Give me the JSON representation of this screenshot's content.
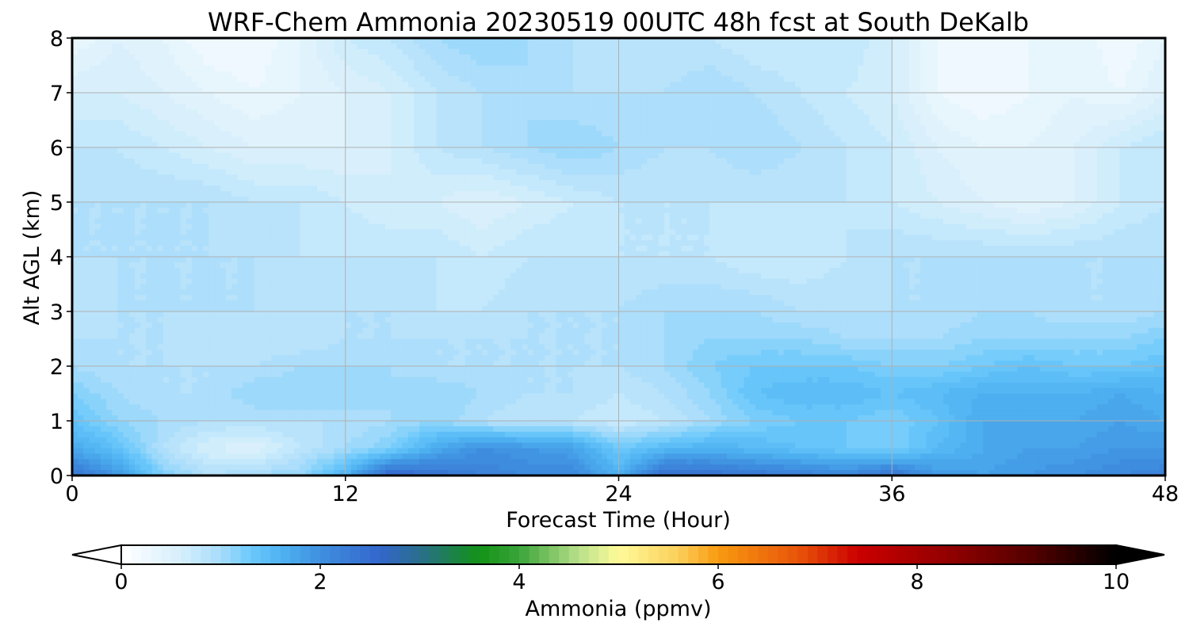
{
  "chart_data": {
    "type": "heatmap",
    "title": "WRF-Chem Ammonia  20230519 00UTC 48h fcst at South DeKalb",
    "xlabel": "Forecast Time (Hour)",
    "ylabel": "Alt AGL (km)",
    "xlim": [
      0,
      48
    ],
    "ylim": [
      0,
      8
    ],
    "x_ticks": [
      0,
      12,
      24,
      36,
      48
    ],
    "y_ticks": [
      0,
      1,
      2,
      3,
      4,
      5,
      6,
      7,
      8
    ],
    "grid": true,
    "colorbar": {
      "label": "Ammonia  (ppmv)",
      "range": [
        0,
        10
      ],
      "ticks": [
        0,
        2,
        4,
        6,
        8,
        10
      ],
      "extend": "both",
      "levels": 100,
      "colormap_stops": [
        {
          "value": 0.0,
          "color": "#ffffff"
        },
        {
          "value": 0.6,
          "color": "#d6effc"
        },
        {
          "value": 1.0,
          "color": "#a7dcfb"
        },
        {
          "value": 1.3,
          "color": "#6cc9fb"
        },
        {
          "value": 1.6,
          "color": "#4fb3f2"
        },
        {
          "value": 2.0,
          "color": "#3f8fe0"
        },
        {
          "value": 2.6,
          "color": "#3366cc"
        },
        {
          "value": 3.0,
          "color": "#2a6e8c"
        },
        {
          "value": 3.6,
          "color": "#129216"
        },
        {
          "value": 4.0,
          "color": "#3aa43a"
        },
        {
          "value": 4.6,
          "color": "#b8e08a"
        },
        {
          "value": 5.0,
          "color": "#fffb9a"
        },
        {
          "value": 5.6,
          "color": "#fbcf5a"
        },
        {
          "value": 6.0,
          "color": "#f89a10"
        },
        {
          "value": 6.8,
          "color": "#e8550a"
        },
        {
          "value": 7.4,
          "color": "#cc0000"
        },
        {
          "value": 8.4,
          "color": "#8c0000"
        },
        {
          "value": 9.2,
          "color": "#500000"
        },
        {
          "value": 10.0,
          "color": "#000000"
        }
      ]
    },
    "heights_km": [
      0,
      0.5,
      1,
      1.5,
      2,
      2.5,
      3,
      4,
      5,
      6,
      7,
      8
    ],
    "times_h": [
      0,
      2,
      4,
      6,
      8,
      10,
      12,
      14,
      16,
      18,
      20,
      22,
      24,
      26,
      28,
      30,
      32,
      34,
      36,
      38,
      40,
      42,
      44,
      46,
      48
    ],
    "values_ppmv": [
      [
        2.4,
        1.9,
        1.2,
        0.9,
        1.0,
        1.1,
        1.6,
        2.6,
        2.4,
        2.2,
        2.1,
        2.1,
        1.6,
        2.5,
        2.4,
        2.3,
        2.2,
        2.1,
        2.4,
        1.9,
        1.8,
        1.9,
        2.0,
        2.1,
        2.2
      ],
      [
        1.7,
        1.4,
        0.9,
        0.6,
        0.5,
        0.8,
        1.0,
        1.2,
        1.7,
        2.0,
        1.9,
        1.8,
        1.3,
        1.5,
        1.6,
        1.5,
        1.4,
        1.3,
        1.2,
        1.5,
        1.7,
        1.8,
        1.8,
        1.9,
        1.9
      ],
      [
        1.4,
        1.1,
        1.0,
        0.9,
        0.9,
        0.9,
        0.9,
        1.0,
        1.1,
        0.9,
        0.8,
        0.8,
        0.7,
        0.8,
        1.0,
        1.2,
        1.3,
        1.3,
        1.2,
        1.4,
        1.7,
        1.7,
        1.7,
        1.8,
        1.7
      ],
      [
        1.2,
        1.0,
        0.9,
        0.9,
        1.1,
        1.1,
        1.1,
        1.0,
        1.1,
        1.0,
        0.9,
        0.9,
        0.8,
        0.9,
        1.1,
        1.4,
        1.5,
        1.5,
        1.4,
        1.5,
        1.6,
        1.6,
        1.6,
        1.7,
        1.6
      ],
      [
        1.0,
        0.9,
        0.9,
        0.9,
        0.9,
        1.0,
        1.0,
        1.0,
        0.9,
        0.9,
        0.9,
        0.9,
        0.9,
        1.0,
        1.2,
        1.3,
        1.3,
        1.3,
        1.2,
        1.2,
        1.3,
        1.4,
        1.3,
        1.3,
        1.4
      ],
      [
        0.9,
        0.9,
        0.9,
        0.8,
        0.8,
        0.8,
        0.9,
        0.9,
        0.9,
        0.9,
        0.9,
        0.9,
        0.9,
        1.0,
        1.1,
        1.1,
        1.1,
        1.0,
        1.0,
        1.0,
        1.1,
        1.1,
        1.1,
        1.1,
        1.2
      ],
      [
        0.8,
        0.9,
        0.9,
        0.9,
        0.9,
        0.9,
        0.9,
        0.9,
        0.8,
        0.8,
        0.9,
        0.9,
        0.9,
        1.0,
        1.0,
        1.0,
        0.9,
        0.9,
        0.9,
        0.9,
        1.0,
        1.0,
        0.9,
        0.9,
        1.0
      ],
      [
        0.9,
        0.9,
        0.9,
        0.9,
        0.9,
        0.8,
        0.8,
        0.8,
        0.8,
        0.7,
        0.8,
        0.8,
        0.8,
        0.8,
        0.8,
        0.7,
        0.7,
        0.8,
        0.9,
        0.9,
        0.9,
        0.9,
        0.9,
        0.9,
        0.9
      ],
      [
        0.9,
        0.9,
        0.9,
        0.9,
        0.8,
        0.8,
        0.7,
        0.6,
        0.6,
        0.5,
        0.6,
        0.7,
        0.8,
        0.8,
        0.8,
        0.8,
        0.8,
        0.8,
        0.7,
        0.6,
        0.5,
        0.4,
        0.5,
        0.7,
        0.8
      ],
      [
        0.8,
        0.8,
        0.7,
        0.6,
        0.5,
        0.5,
        0.5,
        0.6,
        0.8,
        0.9,
        1.0,
        1.1,
        1.0,
        0.9,
        0.9,
        1.0,
        0.9,
        0.8,
        0.7,
        0.5,
        0.4,
        0.4,
        0.5,
        0.7,
        0.8
      ],
      [
        0.6,
        0.6,
        0.5,
        0.4,
        0.3,
        0.4,
        0.5,
        0.6,
        0.8,
        0.9,
        1.0,
        0.9,
        0.9,
        0.9,
        1.0,
        0.9,
        0.8,
        0.7,
        0.6,
        0.3,
        0.2,
        0.3,
        0.4,
        0.3,
        0.5
      ],
      [
        0.3,
        0.5,
        0.4,
        0.2,
        0.2,
        0.4,
        0.7,
        0.8,
        1.0,
        1.1,
        1.0,
        0.9,
        0.8,
        0.8,
        0.8,
        0.7,
        0.7,
        0.8,
        0.6,
        0.3,
        0.2,
        0.3,
        0.4,
        0.2,
        0.4
      ]
    ]
  }
}
